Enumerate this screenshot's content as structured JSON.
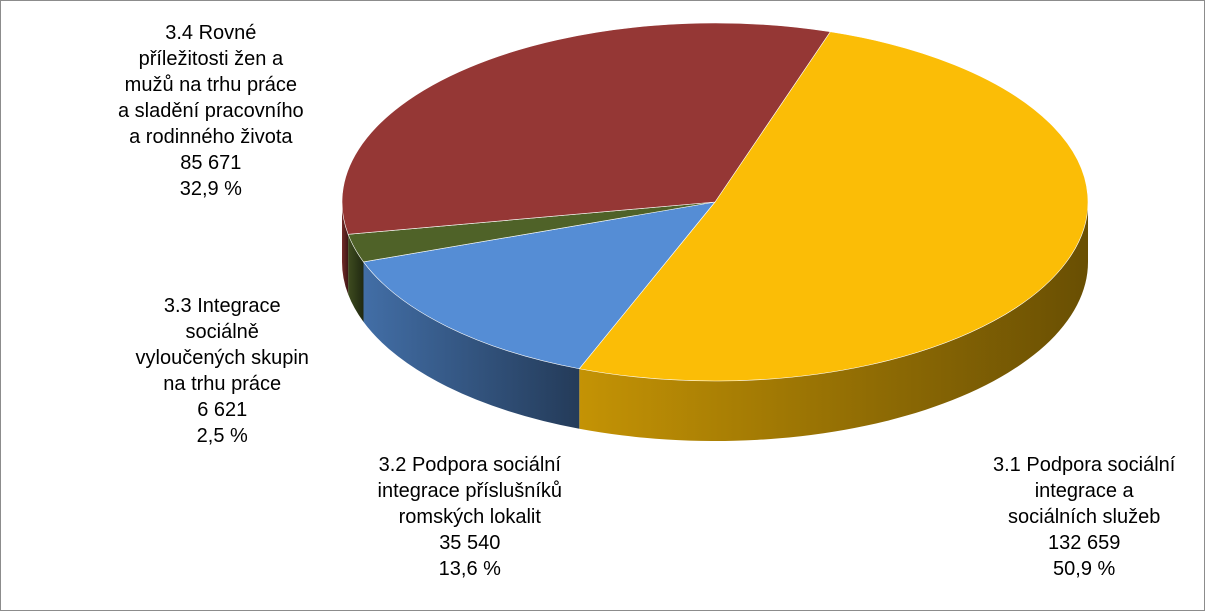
{
  "chart_data": {
    "type": "pie",
    "style": "3d",
    "title": "",
    "slices": [
      {
        "lines": [
          "3.1 Podpora sociální",
          "integrace a",
          "sociálních služeb"
        ],
        "value_text": "132 659",
        "percent_text": "50,9 %",
        "value": 132659,
        "percent": 50.9,
        "color": "#fbbd06"
      },
      {
        "lines": [
          "3.2 Podpora sociální",
          "integrace příslušníků",
          "romských lokalit"
        ],
        "value_text": "35 540",
        "percent_text": "13,6 %",
        "value": 35540,
        "percent": 13.6,
        "color": "#558dd5"
      },
      {
        "lines": [
          "3.3 Integrace",
          "sociálně",
          "vyloučených skupin",
          "na trhu práce"
        ],
        "value_text": "6 621",
        "percent_text": "2,5 %",
        "value": 6621,
        "percent": 2.5,
        "color": "#4f6228"
      },
      {
        "lines": [
          "3.4 Rovné",
          "příležitosti žen a",
          "mužů na trhu práce",
          "a sladění pracovního",
          "a rodinného života"
        ],
        "value_text": "85 671",
        "percent_text": "32,9 %",
        "value": 85671,
        "percent": 32.9,
        "color": "#953735"
      }
    ]
  }
}
